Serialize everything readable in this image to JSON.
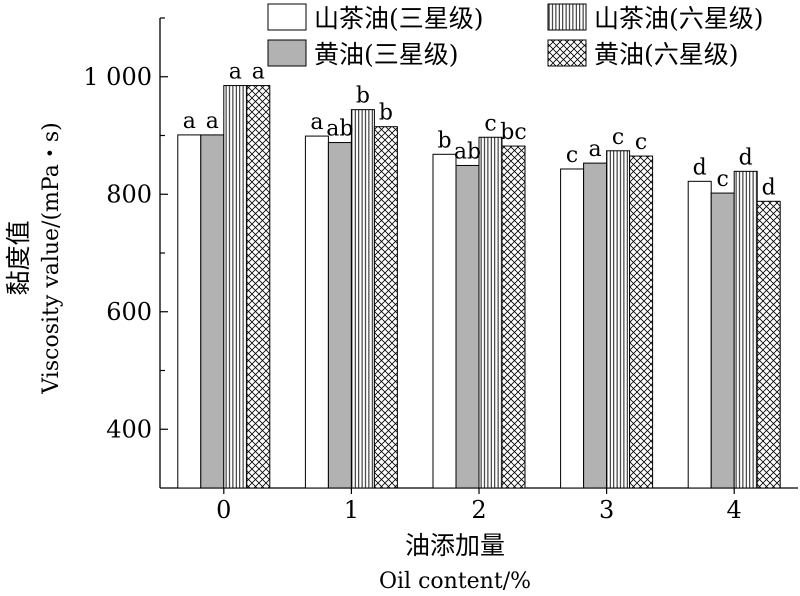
{
  "chart_data": {
    "type": "bar",
    "categories": [
      "0",
      "1",
      "2",
      "3",
      "4"
    ],
    "series": [
      {
        "name": "山茶油(三星级)",
        "pattern": "white",
        "values": [
          901,
          899,
          868,
          843,
          822
        ],
        "letters": [
          "a",
          "a",
          "b",
          "c",
          "d"
        ]
      },
      {
        "name": "黄油(三星级)",
        "pattern": "gray",
        "values": [
          901,
          888,
          849,
          853,
          802
        ],
        "letters": [
          "a",
          "ab",
          "ab",
          "a",
          "c"
        ]
      },
      {
        "name": "山茶油(六星级)",
        "pattern": "vertical",
        "values": [
          985,
          944,
          897,
          874,
          839
        ],
        "letters": [
          "a",
          "b",
          "c",
          "c",
          "d"
        ]
      },
      {
        "name": "黄油(六星级)",
        "pattern": "crosshatch",
        "values": [
          985,
          915,
          882,
          865,
          788
        ],
        "letters": [
          "a",
          "b",
          "bc",
          "c",
          "d"
        ]
      }
    ],
    "ylabel_cn": "黏度值",
    "ylabel_en": "Viscosity value/(mPa・s)",
    "xlabel_cn": "油添加量",
    "xlabel_en": "Oil content/%",
    "ylim": [
      300,
      1100
    ],
    "yticks": [
      400,
      600,
      800,
      1000
    ],
    "ytick_labels": [
      "400",
      "600",
      "800",
      "1 000"
    ],
    "legend_position": "top-right",
    "grid": false,
    "colors": {
      "gray_fill": "#b2b2b2",
      "stroke": "#000000"
    }
  }
}
